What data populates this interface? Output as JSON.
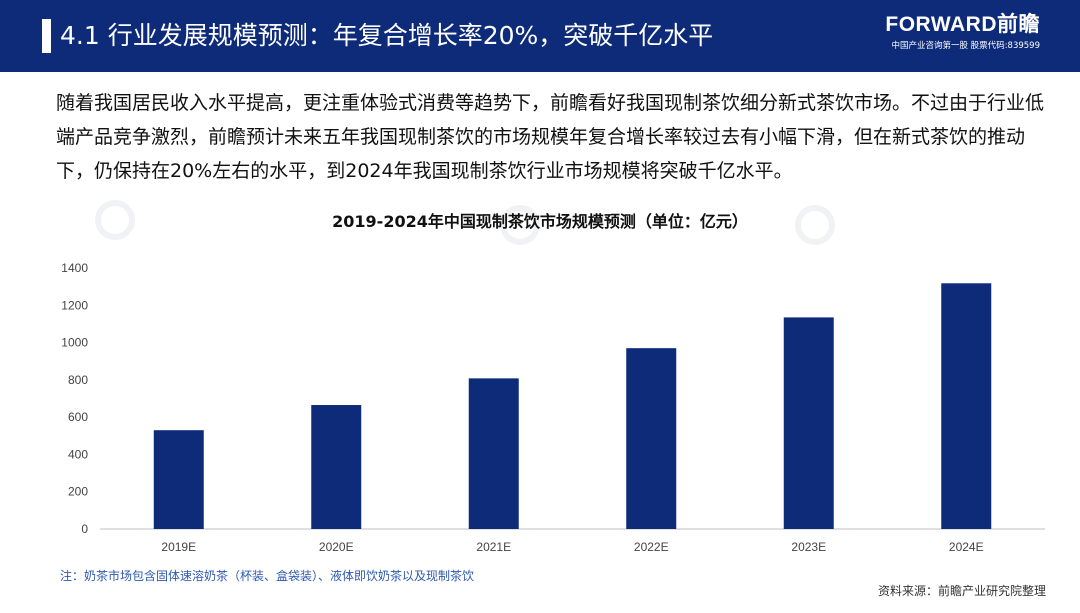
{
  "header": {
    "title": "4.1 行业发展规模预测：年复合增长率20%，突破千亿水平",
    "brand_name": "FORWARD前瞻",
    "brand_tagline": "中国产业咨询第一股  股票代码:839599"
  },
  "intro_text": "随着我国居民收入水平提高，更注重体验式消费等趋势下，前瞻看好我国现制茶饮细分新式茶饮市场。不过由于行业低端产品竞争激烈，前瞻预计未来五年我国现制茶饮的市场规模年复合增长率较过去有小幅下滑，但在新式茶饮的推动下，仍保持在20%左右的水平，到2024年我国现制茶饮行业市场规模将突破千亿水平。",
  "chart_data": {
    "type": "bar",
    "title": "2019-2024年中国现制茶饮市场规模预测（单位：亿元）",
    "categories": [
      "2019E",
      "2020E",
      "2021E",
      "2022E",
      "2023E",
      "2024E"
    ],
    "values": [
      530,
      665,
      808,
      970,
      1135,
      1318
    ],
    "ylim": [
      0,
      1400
    ],
    "yticks": [
      0,
      200,
      400,
      600,
      800,
      1000,
      1200,
      1400
    ],
    "xlabel": "",
    "ylabel": "",
    "grid": false,
    "legend": "none",
    "bar_color": "#0e2b7a"
  },
  "footnote": "注：奶茶市场包含固体速溶奶茶（杯装、盒袋装）、液体即饮奶茶以及现制茶饮",
  "source": "资料来源：前瞻产业研究院整理",
  "colors": {
    "header_bg": "#0e2b7a",
    "bar": "#0e2b7a",
    "footnote": "#2d59b0"
  }
}
